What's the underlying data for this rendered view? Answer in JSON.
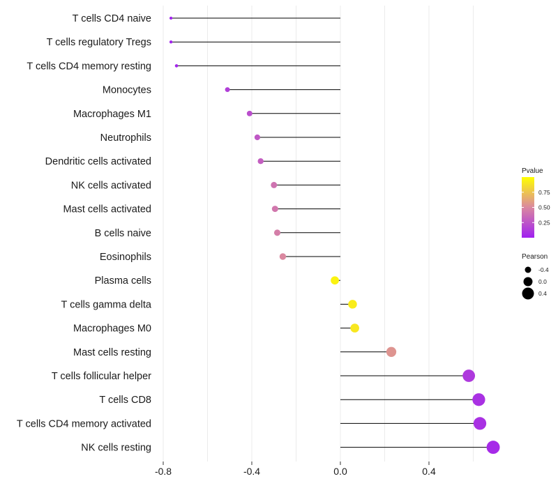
{
  "chart_data": {
    "type": "lollipop",
    "categories": [
      "T cells CD4 naive",
      "T cells regulatory  Tregs",
      "T cells CD4 memory resting",
      "Monocytes",
      "Macrophages M1",
      "Neutrophils",
      "Dendritic cells activated",
      "NK cells activated",
      "Mast cells activated",
      "B cells naive",
      "Eosinophils",
      "Plasma cells",
      "T cells gamma delta",
      "Macrophages M0",
      "Mast cells resting",
      "T cells follicular helper",
      "T cells CD8",
      "T cells CD4 memory activated",
      "NK cells resting"
    ],
    "pearson": [
      -0.765,
      -0.765,
      -0.74,
      -0.51,
      -0.41,
      -0.375,
      -0.36,
      -0.3,
      -0.295,
      -0.285,
      -0.26,
      -0.025,
      0.055,
      0.065,
      0.23,
      0.58,
      0.625,
      0.63,
      0.69
    ],
    "pvalue": [
      0.02,
      0.02,
      0.03,
      0.15,
      0.22,
      0.27,
      0.3,
      0.4,
      0.42,
      0.45,
      0.5,
      0.95,
      0.92,
      0.9,
      0.55,
      0.12,
      0.08,
      0.08,
      0.05
    ],
    "xlim": [
      -0.8,
      0.7
    ],
    "xticks": [
      -0.8,
      -0.4,
      0.0,
      0.4
    ],
    "xtick_labels": [
      "-0.8",
      "-0.4",
      "0.0",
      "0.4"
    ],
    "grid": true,
    "color_scale": {
      "title": "Pvalue",
      "low_color": "#a020f0",
      "mid_color": "#da88a0",
      "high_color": "#ffff00",
      "ticks": [
        0.25,
        0.5,
        0.75
      ],
      "tick_labels": [
        "0.25",
        "0.50",
        "0.75"
      ]
    },
    "size_legend": {
      "title": "Pearson",
      "values": [
        -0.4,
        0.0,
        0.4
      ],
      "labels": [
        "-0.4",
        "0.0",
        "0.4"
      ]
    }
  }
}
